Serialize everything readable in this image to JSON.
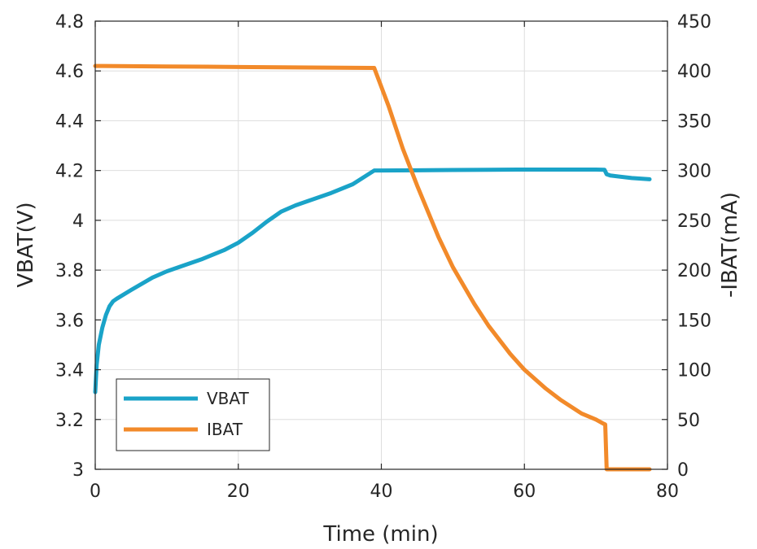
{
  "chart_data": {
    "type": "line",
    "xlabel": "Time (min)",
    "ylabel_left": "VBAT(V)",
    "ylabel_right": "-IBAT(mA)",
    "xlim": [
      0,
      80
    ],
    "ylim_left": [
      3,
      4.8
    ],
    "ylim_right": [
      0,
      450
    ],
    "x_ticks": [
      "0",
      "20",
      "40",
      "60",
      "80"
    ],
    "y_left_ticks": [
      "3",
      "3.2",
      "3.4",
      "3.6",
      "3.8",
      "4",
      "4.2",
      "4.4",
      "4.6",
      "4.8"
    ],
    "y_right_ticks": [
      "0",
      "50",
      "100",
      "150",
      "200",
      "250",
      "300",
      "350",
      "400",
      "450"
    ],
    "grid": true,
    "legend_position": "bottom-left",
    "series": [
      {
        "name": "VBAT",
        "axis": "left",
        "color": "#1aa3c8",
        "x": [
          0,
          0.2,
          0.5,
          1,
          1.5,
          2,
          2.5,
          3,
          5,
          8,
          10,
          12,
          15,
          18,
          20,
          22,
          24,
          26,
          28,
          30,
          33,
          36,
          39,
          40,
          45,
          50,
          55,
          60,
          65,
          70,
          71.2,
          71.5,
          72,
          75,
          77.5
        ],
        "values": [
          3.31,
          3.42,
          3.5,
          3.57,
          3.62,
          3.655,
          3.675,
          3.685,
          3.72,
          3.77,
          3.795,
          3.815,
          3.845,
          3.88,
          3.91,
          3.95,
          3.995,
          4.035,
          4.06,
          4.08,
          4.11,
          4.145,
          4.2,
          4.2,
          4.201,
          4.202,
          4.203,
          4.204,
          4.204,
          4.204,
          4.203,
          4.185,
          4.18,
          4.17,
          4.165
        ]
      },
      {
        "name": "IBAT",
        "axis": "right",
        "color": "#f28a2a",
        "x": [
          0,
          10,
          20,
          30,
          38.5,
          39,
          41,
          43,
          45,
          48,
          50,
          53,
          55,
          58,
          60,
          63,
          65,
          68,
          70,
          71,
          71.3,
          71.5,
          72,
          75,
          77.5
        ],
        "values": [
          405,
          404.5,
          404,
          403.5,
          403,
          403,
          365,
          322,
          285,
          233,
          203,
          166,
          144,
          116,
          100,
          81,
          70,
          56,
          50,
          46,
          45,
          0,
          0,
          0,
          0
        ]
      }
    ]
  }
}
